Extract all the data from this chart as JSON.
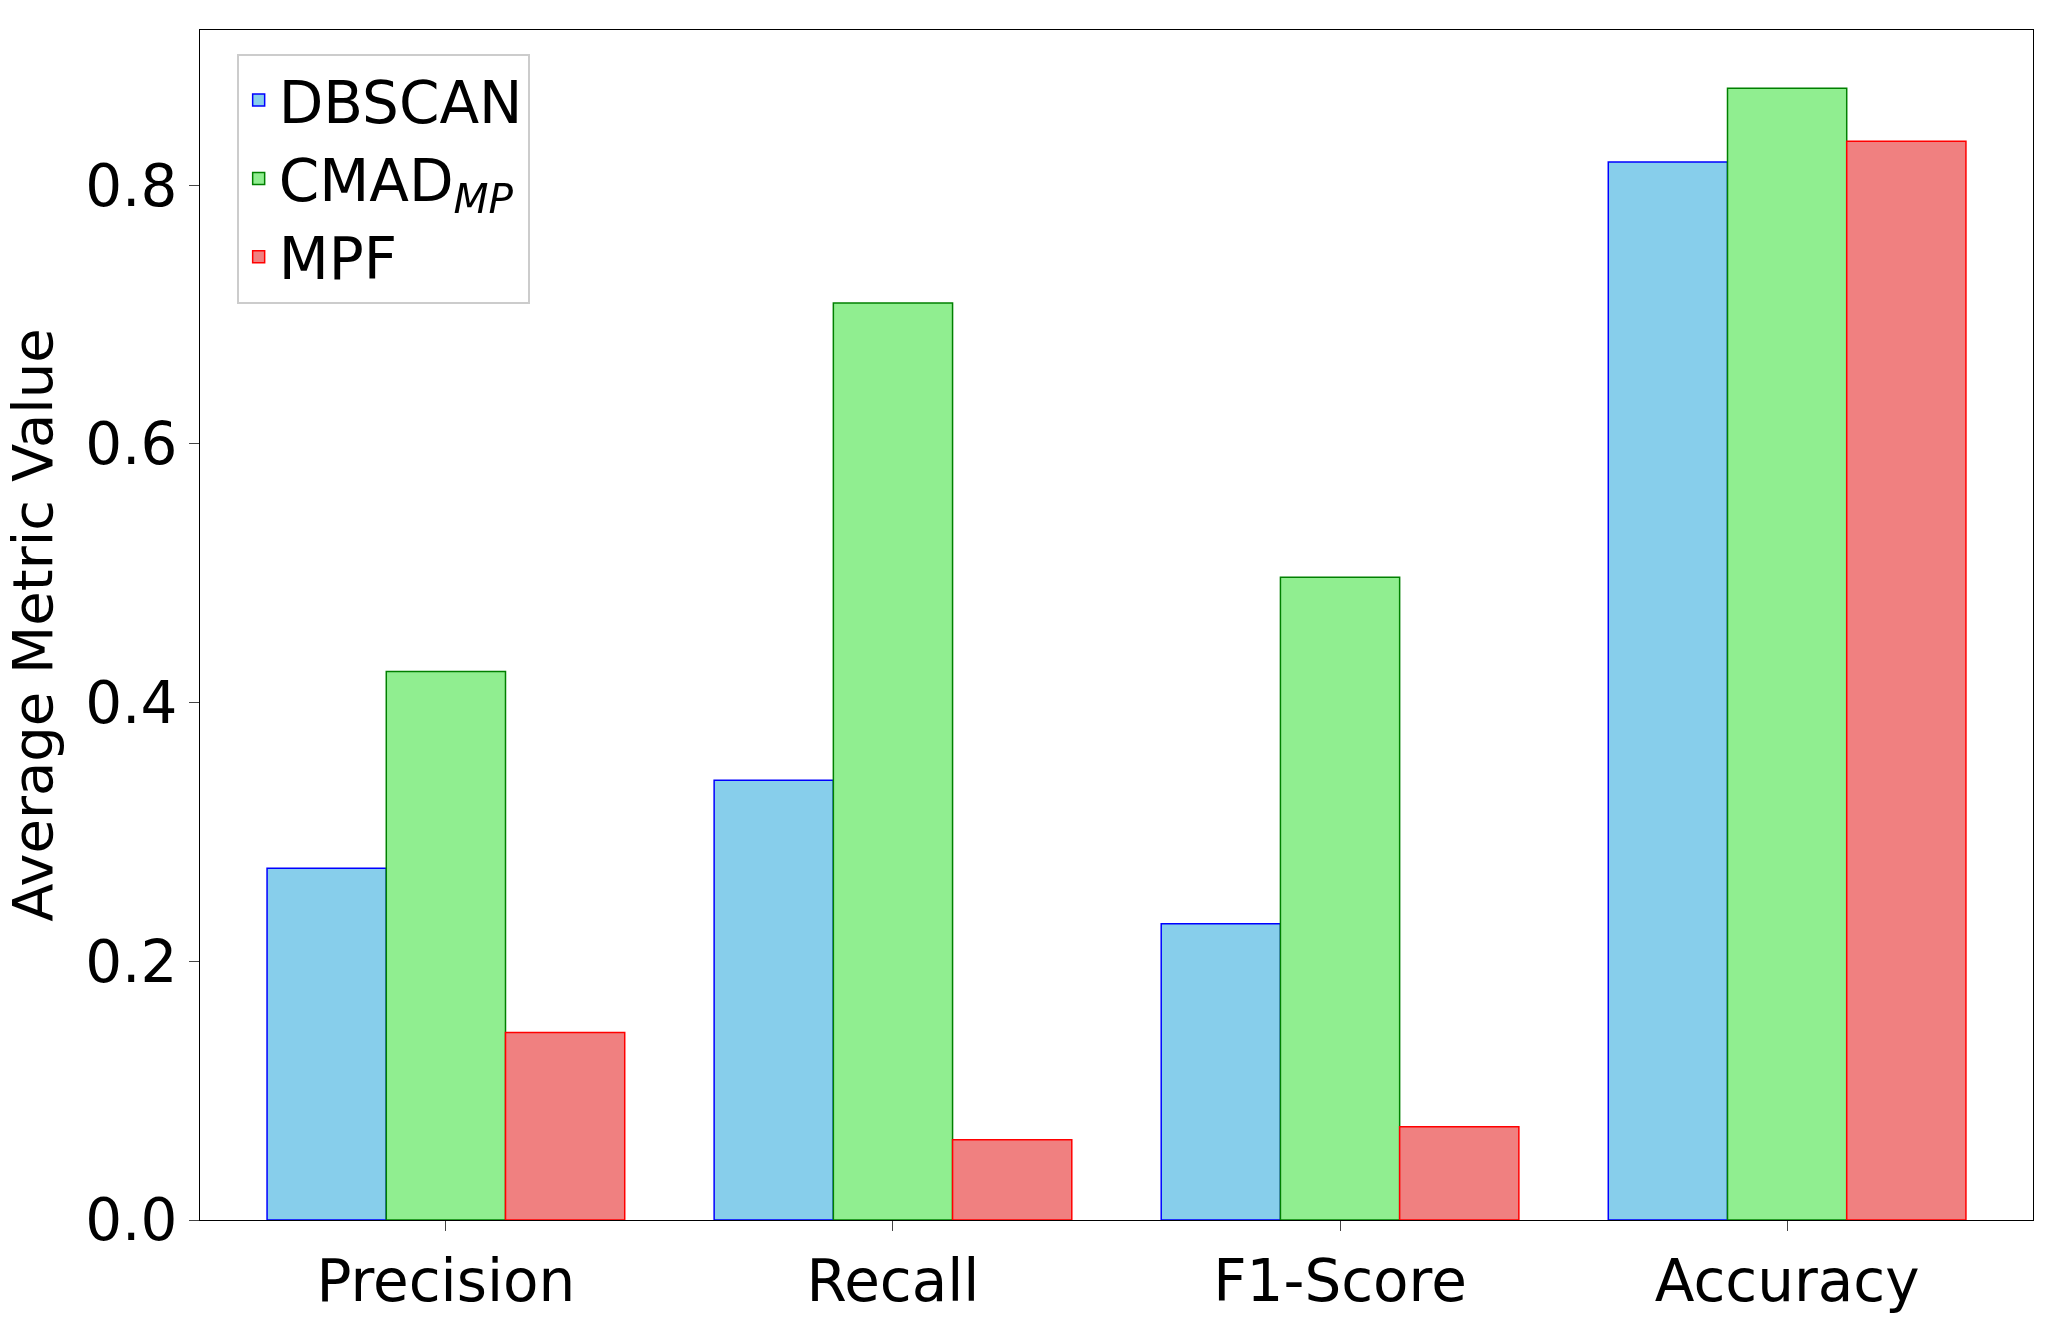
{
  "chart_data": {
    "type": "bar",
    "ylabel": "Average Metric Value",
    "categories": [
      "Precision",
      "Recall",
      "F1-Score",
      "Accuracy"
    ],
    "series": [
      {
        "name": "DBSCAN",
        "color": "#87ceeb",
        "values": [
          0.272,
          0.34,
          0.229,
          0.818
        ]
      },
      {
        "name": "CMAD$_{MP}$",
        "color": "#90ee90",
        "values": [
          0.424,
          0.709,
          0.497,
          0.875
        ]
      },
      {
        "name": "MPF",
        "color": "#f08080",
        "values": [
          0.145,
          0.062,
          0.072,
          0.834
        ]
      }
    ],
    "ylim": [
      0,
      0.92
    ],
    "yticks": [
      {
        "value": 0,
        "label": "0.0"
      },
      0.2,
      0.4,
      0.6,
      0.8
    ],
    "legend": "top left"
  }
}
